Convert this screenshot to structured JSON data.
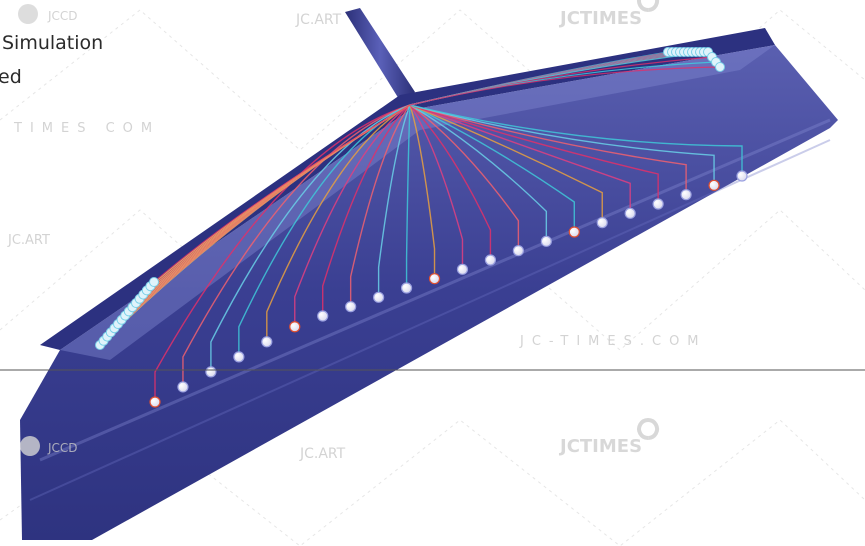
{
  "captions": {
    "line1": "Simulation",
    "line2": "ed"
  },
  "watermarks": {
    "jccd": "JCCD",
    "jctimes": "JCTIMES",
    "jcart": "JC.ART",
    "jctimes_domain": "JC-TIMES.COM",
    "times_com": "TIMES COM"
  },
  "colors": {
    "mold_body": "#3a3f8f",
    "mold_edge": "#2a2f7a",
    "flow_front_hot": "#e0306a",
    "flow_front_cool": "#40d0e0",
    "reference_line": "#555555",
    "watermark": "#cfcfcf"
  },
  "icons": [
    "jccd-logo-icon",
    "jctimes-logo-icon",
    "jc-art-logo-icon",
    "sensor-node-icon"
  ]
}
